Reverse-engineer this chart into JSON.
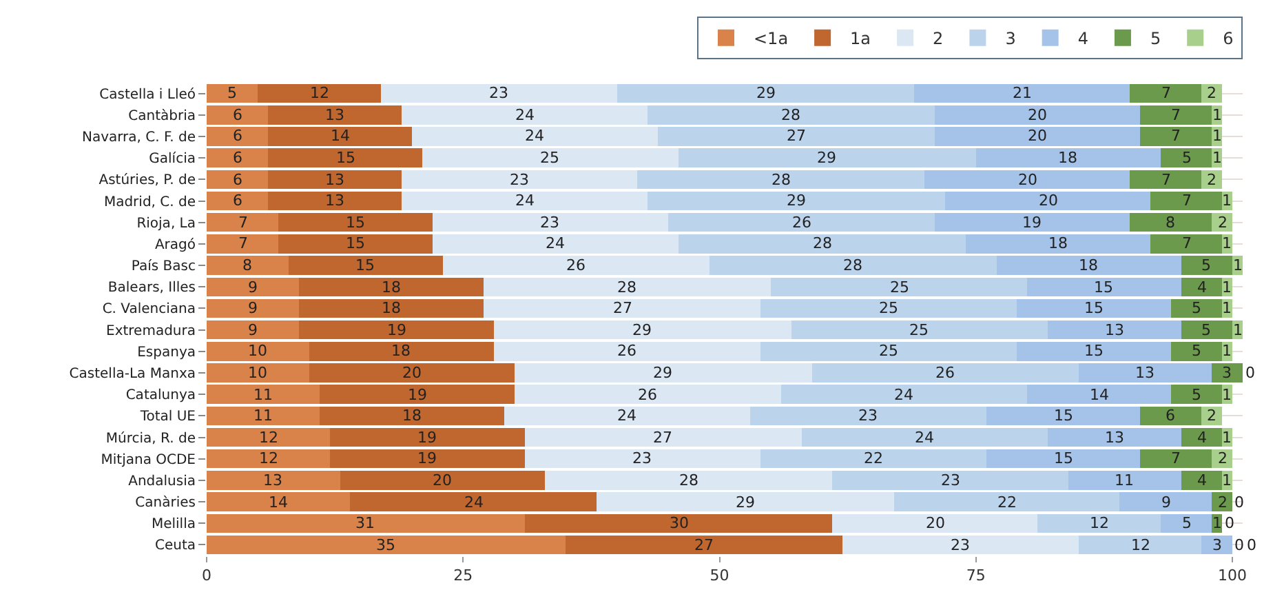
{
  "chart_data": {
    "type": "bar",
    "orientation": "horizontal",
    "stacked": true,
    "data_labels": true,
    "grid": "y",
    "legend": "top right",
    "categories": [
      "Castella i Lleó",
      "Cantàbria",
      "Navarra, C. F. de",
      "Galícia",
      "Astúries, P. de",
      "Madrid, C. de",
      "Rioja, La",
      "Aragó",
      "País Basc",
      "Balears, Illes",
      "C. Valenciana",
      "Extremadura",
      "Espanya",
      "Castella-La Manxa",
      "Catalunya",
      "Total UE",
      "Múrcia, R. de",
      "Mitjana OCDE",
      "Andalusia",
      "Canàries",
      "Melilla",
      "Ceuta"
    ],
    "xlim": [
      0,
      101
    ],
    "xticks": [
      0,
      25,
      50,
      75,
      100
    ],
    "series": [
      {
        "name": "<1a",
        "color": "#d9834b",
        "values": [
          5,
          6,
          6,
          6,
          6,
          6,
          7,
          7,
          8,
          9,
          9,
          9,
          10,
          10,
          11,
          11,
          12,
          12,
          13,
          14,
          31,
          35
        ]
      },
      {
        "name": "1a",
        "color": "#c0662f",
        "values": [
          12,
          13,
          14,
          15,
          13,
          13,
          15,
          15,
          15,
          18,
          18,
          19,
          18,
          20,
          19,
          18,
          19,
          19,
          20,
          24,
          30,
          27
        ]
      },
      {
        "name": "2",
        "color": "#dce7f4",
        "values": [
          23,
          24,
          24,
          25,
          23,
          24,
          23,
          24,
          26,
          28,
          27,
          29,
          26,
          29,
          26,
          24,
          27,
          23,
          28,
          29,
          20,
          23
        ]
      },
      {
        "name": "3",
        "color": "#bcd3ec",
        "values": [
          29,
          28,
          27,
          29,
          28,
          29,
          26,
          28,
          28,
          25,
          25,
          25,
          25,
          26,
          24,
          23,
          24,
          22,
          23,
          22,
          12,
          12
        ]
      },
      {
        "name": "4",
        "color": "#a5c3e8",
        "values": [
          21,
          20,
          20,
          18,
          20,
          20,
          19,
          18,
          18,
          15,
          15,
          13,
          15,
          13,
          14,
          15,
          13,
          15,
          11,
          9,
          5,
          3
        ]
      },
      {
        "name": "5",
        "color": "#6b9a4c",
        "values": [
          7,
          7,
          7,
          5,
          7,
          7,
          8,
          7,
          5,
          4,
          5,
          5,
          5,
          3,
          5,
          6,
          4,
          7,
          4,
          2,
          1,
          0
        ]
      },
      {
        "name": "6",
        "color": "#a8d08c",
        "values": [
          2,
          1,
          1,
          1,
          2,
          1,
          2,
          1,
          1,
          1,
          1,
          1,
          1,
          0,
          1,
          2,
          1,
          2,
          1,
          0,
          0,
          0
        ]
      }
    ]
  }
}
